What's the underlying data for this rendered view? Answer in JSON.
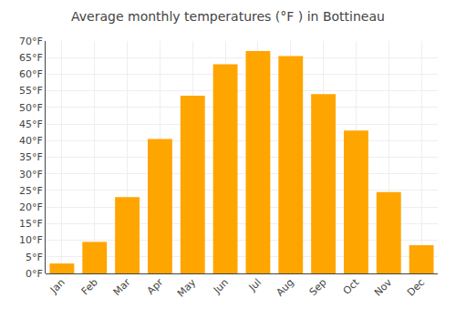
{
  "chart_data": {
    "type": "bar",
    "title": "Average monthly temperatures (°F ) in Bottineau",
    "categories": [
      "Jan",
      "Feb",
      "Mar",
      "Apr",
      "May",
      "Jun",
      "Jul",
      "Aug",
      "Sep",
      "Oct",
      "Nov",
      "Dec"
    ],
    "values": [
      3,
      9.5,
      23,
      40.5,
      53.5,
      63,
      67,
      65.5,
      54,
      43,
      24.5,
      8.5
    ],
    "color": "#FFA500",
    "ylim": [
      0,
      70
    ],
    "yticks": [
      {
        "value": 0,
        "label": "0°F"
      },
      {
        "value": 5,
        "label": "5°F"
      },
      {
        "value": 10,
        "label": "10°F"
      },
      {
        "value": 15,
        "label": "15°F"
      },
      {
        "value": 20,
        "label": "20°F"
      },
      {
        "value": 25,
        "label": "25°F"
      },
      {
        "value": 30,
        "label": "30°F"
      },
      {
        "value": 35,
        "label": "35°F"
      },
      {
        "value": 40,
        "label": "40°F"
      },
      {
        "value": 45,
        "label": "45°F"
      },
      {
        "value": 50,
        "label": "50°F"
      },
      {
        "value": 55,
        "label": "55°F"
      },
      {
        "value": 60,
        "label": "60°F"
      },
      {
        "value": 65,
        "label": "65°F"
      },
      {
        "value": 70,
        "label": "70°F"
      }
    ],
    "grid": true
  }
}
